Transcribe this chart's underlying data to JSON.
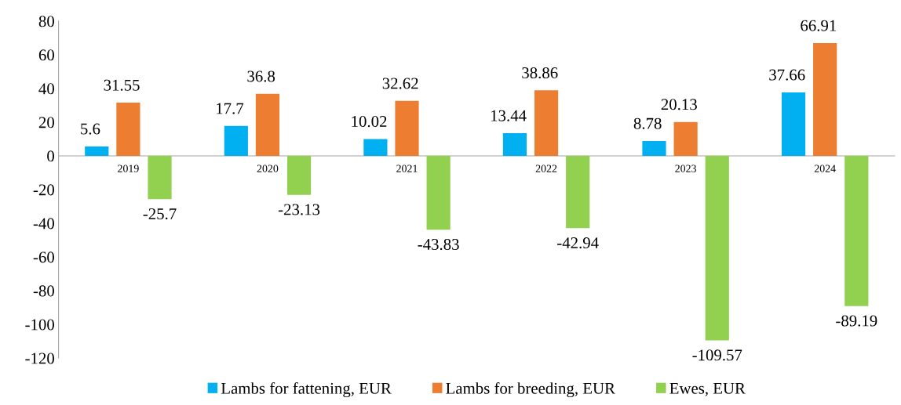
{
  "chart_data": {
    "type": "bar",
    "categories": [
      "2019",
      "2020",
      "2021",
      "2022",
      "2023",
      "2024"
    ],
    "series": [
      {
        "name": "Lambs for fattening, EUR",
        "color": "#00b0f0",
        "values": [
          5.6,
          17.7,
          10.02,
          13.44,
          8.78,
          37.66
        ]
      },
      {
        "name": "Lambs for breeding, EUR",
        "color": "#ed7d31",
        "values": [
          31.55,
          36.8,
          32.62,
          38.86,
          20.13,
          66.91
        ]
      },
      {
        "name": "Ewes, EUR",
        "color": "#92d050",
        "values": [
          -25.7,
          -23.13,
          -43.83,
          -42.94,
          -109.57,
          -89.19
        ]
      }
    ],
    "ylim": [
      -120,
      80
    ],
    "yticks": [
      -120,
      -100,
      -80,
      -60,
      -40,
      -20,
      0,
      20,
      40,
      60,
      80
    ],
    "grid": false,
    "legend": "bottom",
    "data_labels": true
  }
}
